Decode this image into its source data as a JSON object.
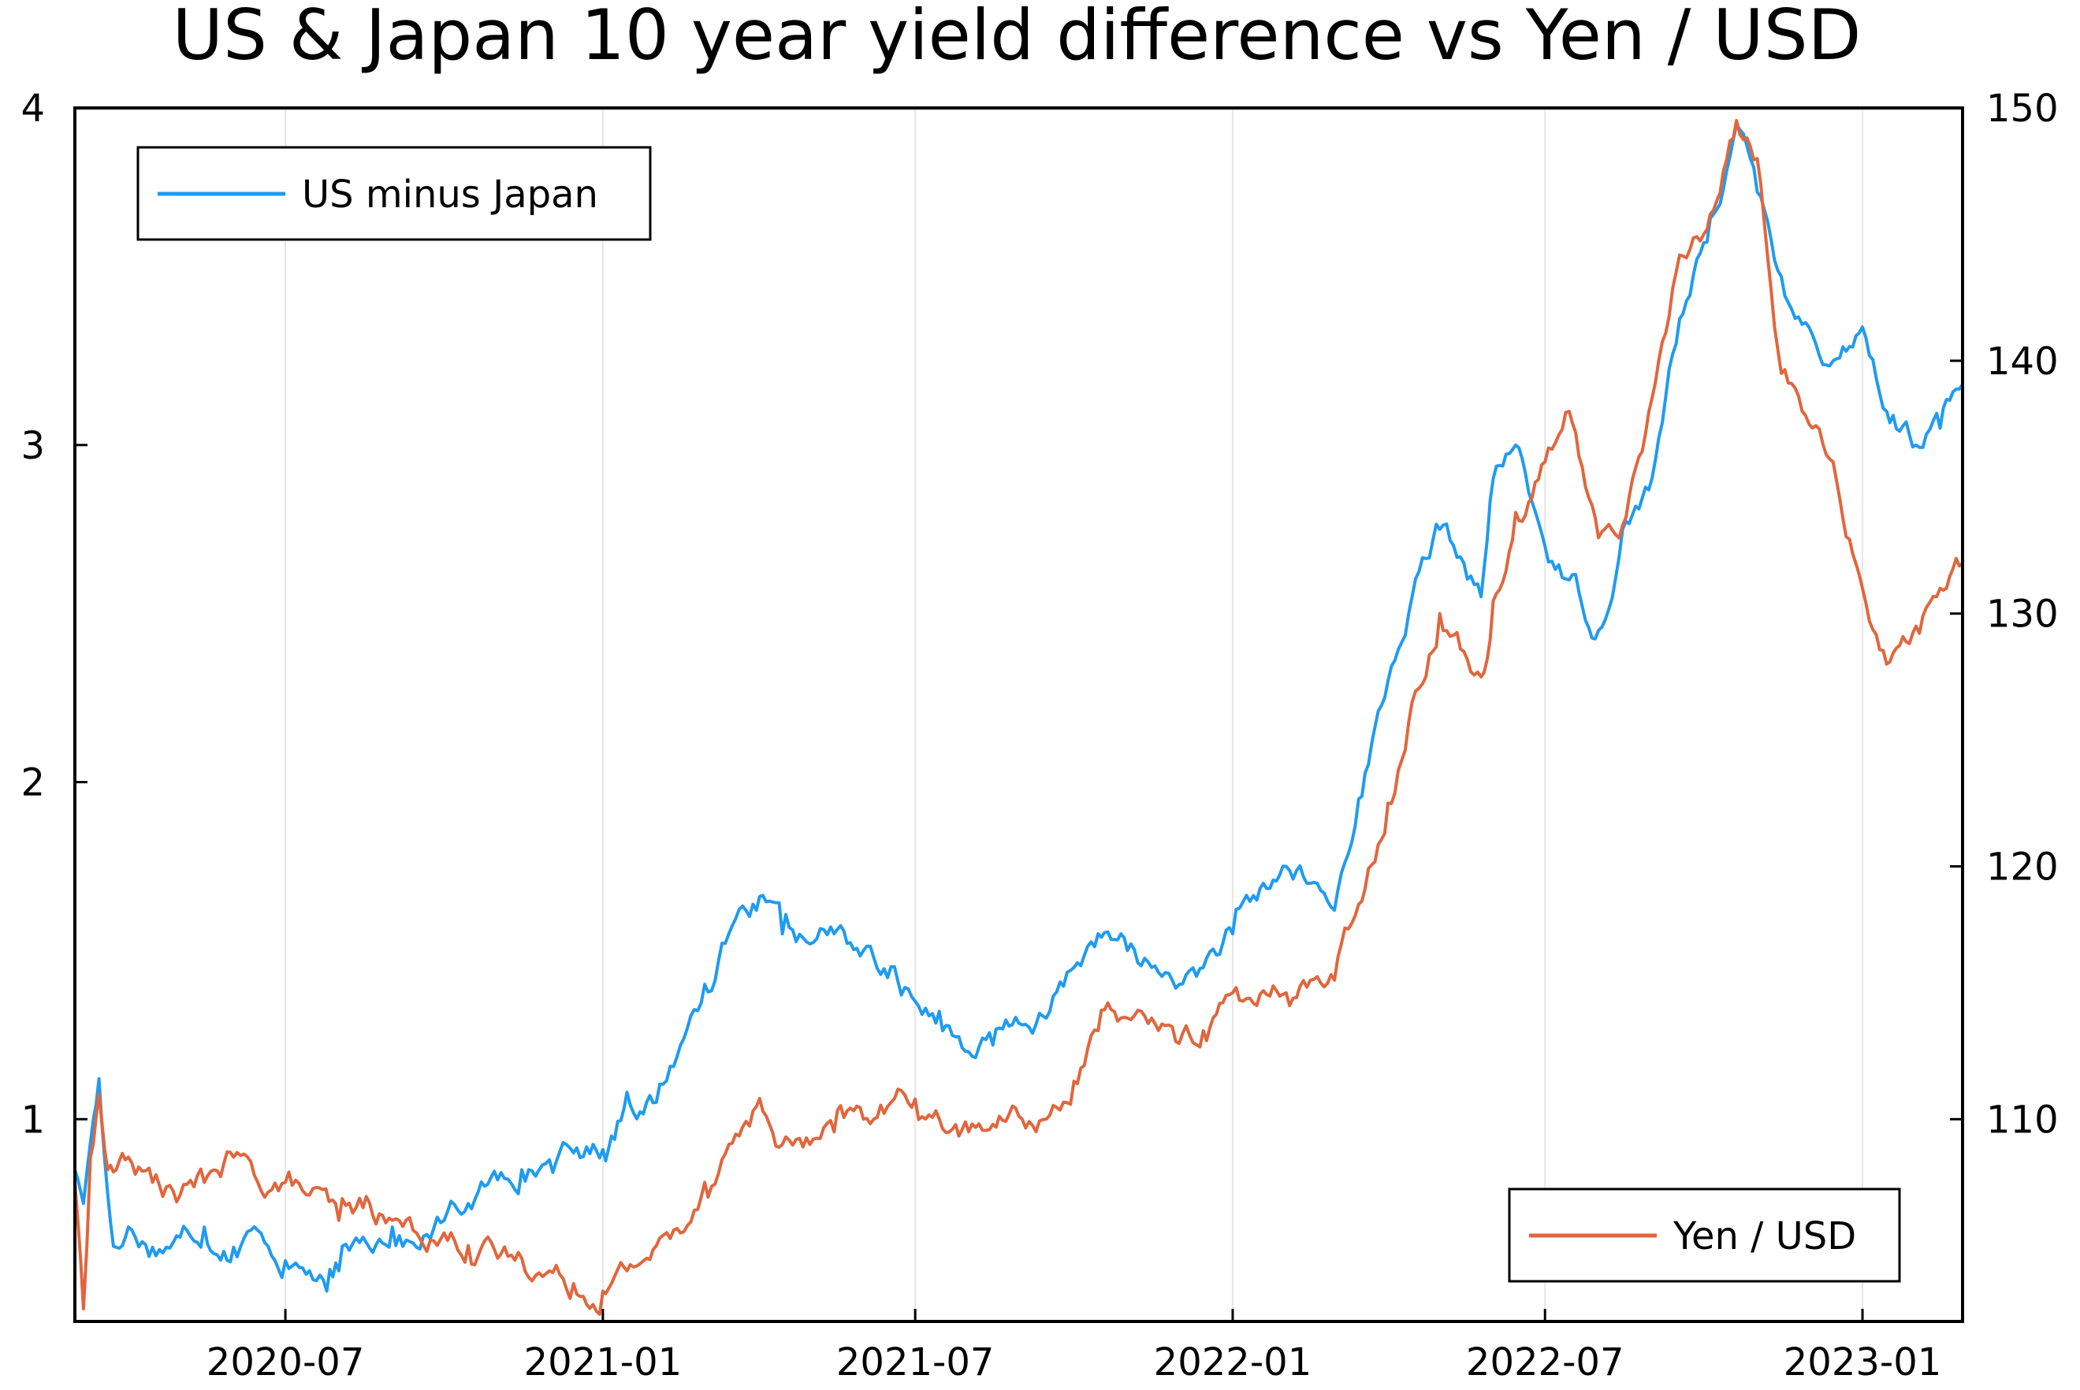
{
  "chart_data": {
    "type": "line",
    "title": "US & Japan 10 year yield difference vs Yen / USD",
    "xlabel": "",
    "ylabel": "",
    "y2label": "",
    "x_ticks": [
      "2020-07",
      "2021-01",
      "2021-07",
      "2022-01",
      "2022-07",
      "2023-01"
    ],
    "xlim": [
      "2020-03-01",
      "2023-02-28"
    ],
    "ylim": [
      0.4,
      4.0
    ],
    "y_ticks": [
      1,
      2,
      3,
      4
    ],
    "y2lim": [
      102,
      150
    ],
    "y2_ticks": [
      110,
      120,
      130,
      140,
      150
    ],
    "grid": "vertical",
    "series": [
      {
        "name": "US minus Japan",
        "axis": "left",
        "color": "#1f9bf0",
        "legend_position": "top-left",
        "x": [
          "2020-03-01",
          "2020-03-06",
          "2020-03-10",
          "2020-03-15",
          "2020-03-20",
          "2020-03-25",
          "2020-04-01",
          "2020-04-15",
          "2020-05-01",
          "2020-05-15",
          "2020-06-01",
          "2020-06-15",
          "2020-07-01",
          "2020-07-15",
          "2020-07-25",
          "2020-08-01",
          "2020-08-15",
          "2020-09-01",
          "2020-09-15",
          "2020-10-01",
          "2020-10-15",
          "2020-11-01",
          "2020-11-15",
          "2020-12-01",
          "2020-12-15",
          "2021-01-01",
          "2021-01-06",
          "2021-01-15",
          "2021-02-01",
          "2021-02-15",
          "2021-03-01",
          "2021-03-15",
          "2021-03-31",
          "2021-04-15",
          "2021-05-01",
          "2021-05-15",
          "2021-06-01",
          "2021-06-15",
          "2021-07-01",
          "2021-07-15",
          "2021-08-01",
          "2021-08-15",
          "2021-09-01",
          "2021-09-15",
          "2021-10-01",
          "2021-10-15",
          "2021-11-01",
          "2021-11-15",
          "2021-12-01",
          "2021-12-15",
          "2022-01-01",
          "2022-01-15",
          "2022-02-01",
          "2022-02-15",
          "2022-03-01",
          "2022-03-15",
          "2022-04-01",
          "2022-04-15",
          "2022-05-01",
          "2022-05-15",
          "2022-05-25",
          "2022-06-01",
          "2022-06-14",
          "2022-07-01",
          "2022-07-15",
          "2022-08-01",
          "2022-08-15",
          "2022-09-01",
          "2022-09-15",
          "2022-10-01",
          "2022-10-20",
          "2022-11-01",
          "2022-11-15",
          "2022-12-01",
          "2022-12-15",
          "2023-01-01",
          "2023-01-15",
          "2023-02-01",
          "2023-02-15",
          "2023-02-28"
        ],
        "values": [
          0.85,
          0.75,
          0.93,
          1.12,
          0.78,
          0.62,
          0.68,
          0.62,
          0.65,
          0.68,
          0.62,
          0.67,
          0.58,
          0.55,
          0.49,
          0.55,
          0.65,
          0.68,
          0.62,
          0.7,
          0.75,
          0.82,
          0.85,
          0.88,
          0.9,
          0.91,
          0.95,
          1.08,
          1.05,
          1.22,
          1.4,
          1.55,
          1.62,
          1.55,
          1.52,
          1.55,
          1.5,
          1.42,
          1.35,
          1.32,
          1.2,
          1.22,
          1.28,
          1.3,
          1.45,
          1.55,
          1.5,
          1.45,
          1.4,
          1.45,
          1.55,
          1.65,
          1.75,
          1.7,
          1.62,
          1.95,
          2.3,
          2.55,
          2.75,
          2.65,
          2.55,
          2.9,
          3.0,
          2.7,
          2.6,
          2.45,
          2.75,
          2.9,
          3.3,
          3.6,
          3.95,
          3.75,
          3.5,
          3.35,
          3.25,
          3.35,
          3.1,
          3.0,
          3.05,
          3.18
        ]
      },
      {
        "name": "Yen / USD",
        "axis": "right",
        "color": "#e1663d",
        "legend_position": "bottom-right",
        "x": [
          "2020-03-01",
          "2020-03-06",
          "2020-03-10",
          "2020-03-15",
          "2020-03-20",
          "2020-03-25",
          "2020-04-01",
          "2020-04-15",
          "2020-05-01",
          "2020-05-15",
          "2020-06-01",
          "2020-06-15",
          "2020-07-01",
          "2020-07-15",
          "2020-08-01",
          "2020-08-15",
          "2020-09-01",
          "2020-09-15",
          "2020-10-01",
          "2020-10-15",
          "2020-11-01",
          "2020-11-15",
          "2020-12-01",
          "2020-12-15",
          "2021-01-01",
          "2021-01-06",
          "2021-01-15",
          "2021-02-01",
          "2021-02-15",
          "2021-03-01",
          "2021-03-15",
          "2021-03-31",
          "2021-04-15",
          "2021-05-01",
          "2021-05-15",
          "2021-06-01",
          "2021-06-15",
          "2021-07-01",
          "2021-07-15",
          "2021-08-01",
          "2021-08-15",
          "2021-09-01",
          "2021-09-15",
          "2021-10-01",
          "2021-10-15",
          "2021-11-01",
          "2021-11-15",
          "2021-12-01",
          "2021-12-15",
          "2022-01-01",
          "2022-01-15",
          "2022-02-01",
          "2022-02-15",
          "2022-03-01",
          "2022-03-15",
          "2022-04-01",
          "2022-04-15",
          "2022-05-01",
          "2022-05-15",
          "2022-05-25",
          "2022-06-01",
          "2022-06-14",
          "2022-07-01",
          "2022-07-15",
          "2022-08-01",
          "2022-08-15",
          "2022-09-01",
          "2022-09-15",
          "2022-10-01",
          "2022-10-20",
          "2022-11-01",
          "2022-11-15",
          "2022-12-01",
          "2022-12-15",
          "2023-01-01",
          "2023-01-15",
          "2023-02-01",
          "2023-02-15",
          "2023-02-28"
        ],
        "values": [
          107.5,
          102.5,
          108.5,
          111.0,
          108.0,
          108.0,
          108.5,
          107.5,
          107.0,
          107.5,
          108.5,
          107.5,
          107.5,
          107.0,
          106.0,
          106.5,
          106.0,
          105.5,
          105.5,
          105.0,
          104.5,
          104.5,
          104.0,
          103.5,
          103.2,
          103.5,
          104.0,
          105.0,
          105.5,
          107.5,
          109.0,
          110.5,
          109.0,
          109.0,
          109.5,
          110.0,
          110.5,
          110.8,
          110.0,
          109.5,
          109.8,
          110.0,
          110.0,
          111.5,
          113.5,
          114.0,
          114.0,
          113.0,
          113.5,
          115.0,
          114.5,
          115.0,
          115.5,
          115.5,
          118.5,
          122.5,
          126.5,
          130.0,
          128.5,
          127.5,
          130.5,
          134.0,
          136.0,
          138.0,
          133.0,
          133.5,
          138.5,
          143.5,
          145.0,
          149.5,
          148.0,
          139.5,
          137.5,
          136.0,
          131.0,
          128.0,
          129.5,
          131.0,
          132.0
        ]
      }
    ]
  }
}
